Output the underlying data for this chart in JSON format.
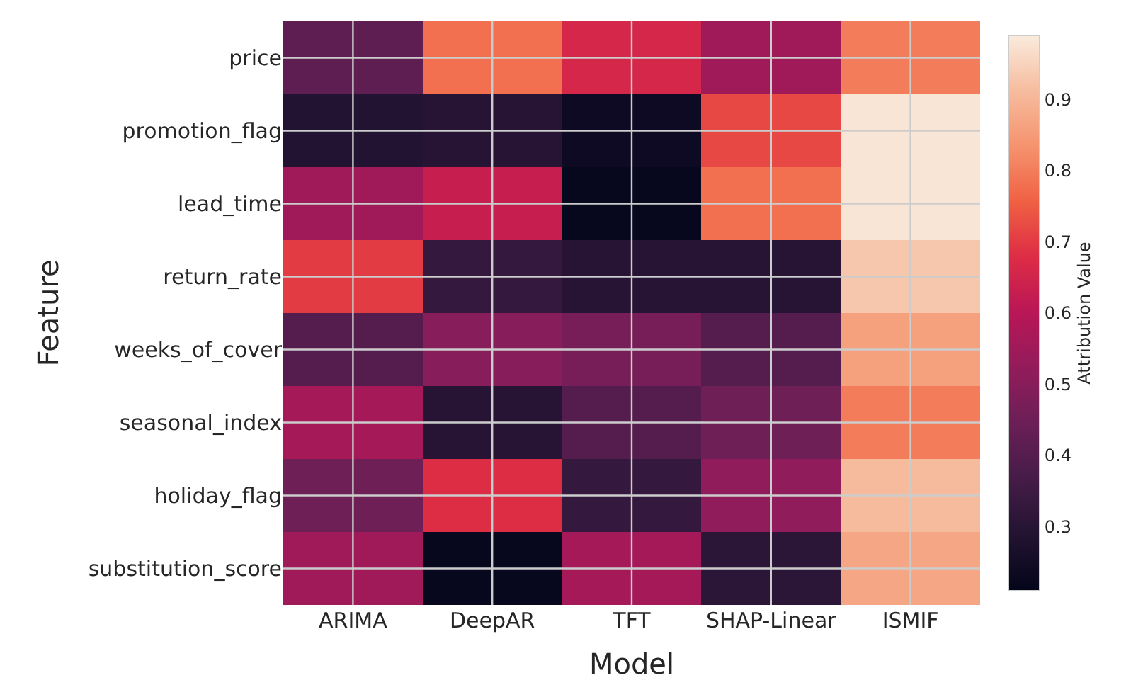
{
  "chart_data": {
    "type": "heatmap",
    "xlabel": "Model",
    "ylabel": "Feature",
    "clabel": "Attribution Value",
    "categories": [
      "ARIMA",
      "DeepAR",
      "TFT",
      "SHAP-Linear",
      "ISMIF"
    ],
    "y_categories": [
      "price",
      "promotion_flag",
      "lead_time",
      "return_rate",
      "weeks_of_cover",
      "seasonal_index",
      "holiday_flag",
      "substitution_score"
    ],
    "cells": [
      [
        0.42,
        0.78,
        0.66,
        0.55,
        0.8
      ],
      [
        0.29,
        0.3,
        0.24,
        0.72,
        0.98
      ],
      [
        0.55,
        0.63,
        0.22,
        0.78,
        0.98
      ],
      [
        0.7,
        0.33,
        0.3,
        0.3,
        0.93
      ],
      [
        0.4,
        0.5,
        0.47,
        0.4,
        0.86
      ],
      [
        0.56,
        0.3,
        0.4,
        0.45,
        0.8
      ],
      [
        0.45,
        0.68,
        0.33,
        0.52,
        0.91
      ],
      [
        0.55,
        0.22,
        0.56,
        0.31,
        0.87
      ]
    ],
    "clim": [
      0.21,
      0.99
    ],
    "cticks": [
      0.3,
      0.4,
      0.5,
      0.6,
      0.7,
      0.8,
      0.9
    ],
    "grid": true
  }
}
